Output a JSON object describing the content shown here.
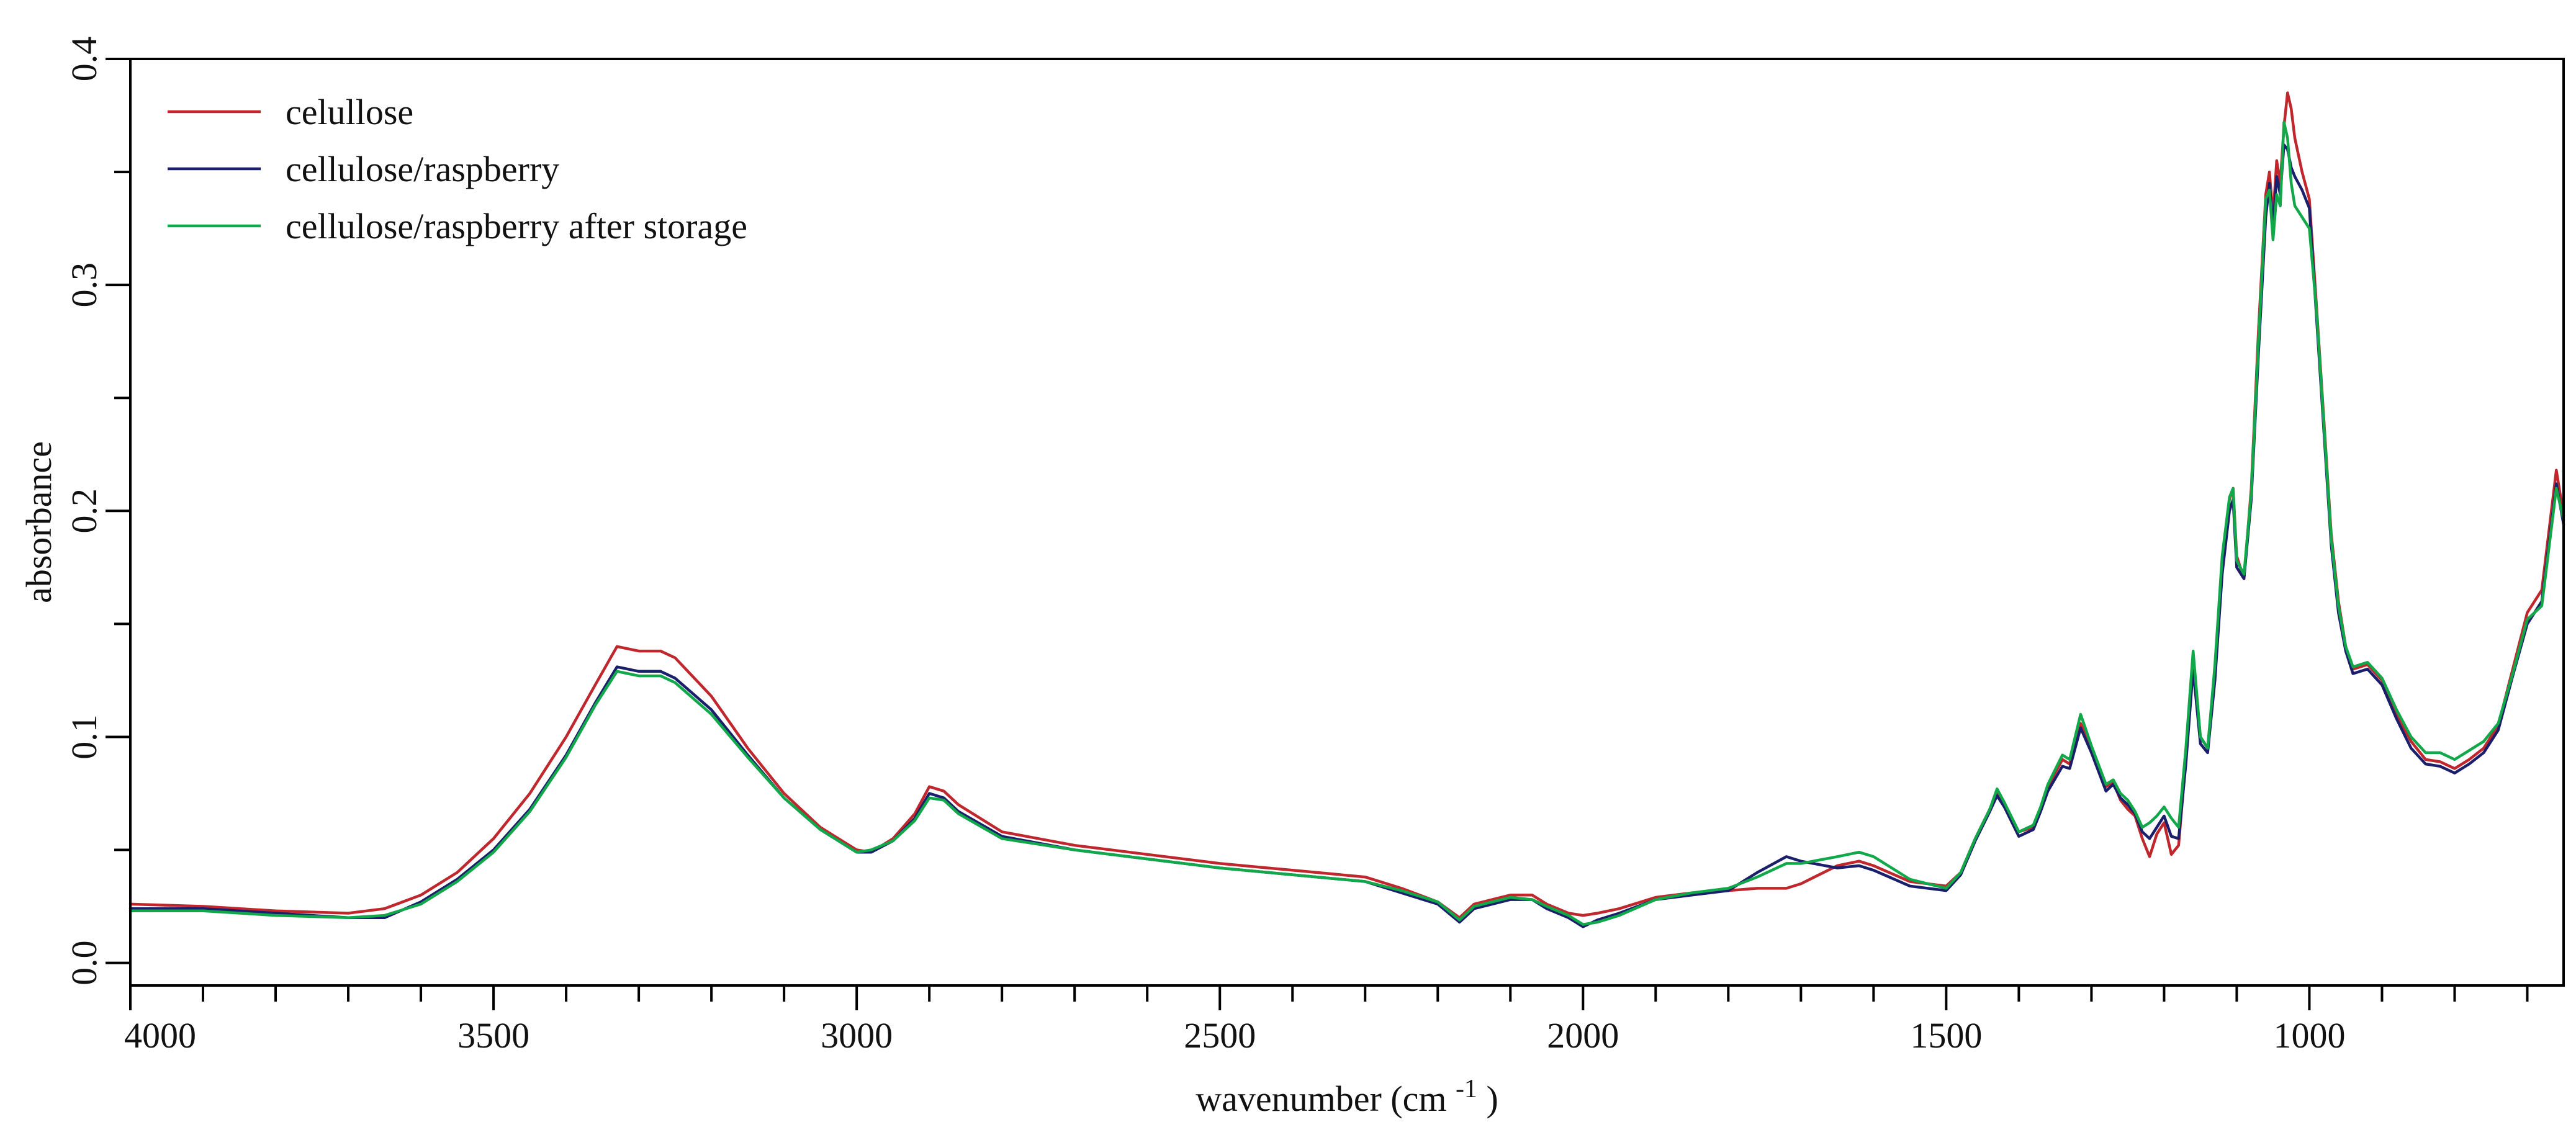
{
  "chart_data": {
    "type": "line",
    "title": "",
    "xlabel": "wavenumber (cm",
    "xlabel_superscript": "-1",
    "xlabel_close": ")",
    "ylabel": "absorbance",
    "xlim": [
      4000,
      650
    ],
    "ylim": [
      -0.01,
      0.4
    ],
    "grid": false,
    "legend_position": "top-left",
    "x_ticks": [
      {
        "value": 4000,
        "label": "4000"
      },
      {
        "value": 3500,
        "label": "3500"
      },
      {
        "value": 3000,
        "label": "3000"
      },
      {
        "value": 2500,
        "label": "2500"
      },
      {
        "value": 2000,
        "label": "2000"
      },
      {
        "value": 1500,
        "label": "1500"
      },
      {
        "value": 1000,
        "label": "1000"
      }
    ],
    "x_minor_step": 100,
    "y_ticks": [
      {
        "value": 0.0,
        "label": "0.0"
      },
      {
        "value": 0.1,
        "label": "0.1"
      },
      {
        "value": 0.2,
        "label": "0.2"
      },
      {
        "value": 0.3,
        "label": "0.3"
      },
      {
        "value": 0.4,
        "label": "0.4"
      }
    ],
    "y_minor_step": 0.05,
    "series": [
      {
        "name": "celullose",
        "color": "#c0272d",
        "x": [
          4000,
          3900,
          3800,
          3700,
          3650,
          3600,
          3550,
          3500,
          3450,
          3400,
          3360,
          3330,
          3300,
          3270,
          3250,
          3200,
          3150,
          3100,
          3050,
          3000,
          2980,
          2950,
          2920,
          2900,
          2880,
          2860,
          2800,
          2700,
          2600,
          2500,
          2400,
          2300,
          2250,
          2200,
          2170,
          2150,
          2100,
          2070,
          2050,
          2020,
          2000,
          1980,
          1950,
          1900,
          1850,
          1800,
          1760,
          1720,
          1700,
          1650,
          1620,
          1600,
          1550,
          1500,
          1480,
          1460,
          1440,
          1430,
          1420,
          1400,
          1380,
          1370,
          1360,
          1340,
          1330,
          1315,
          1300,
          1280,
          1270,
          1260,
          1250,
          1240,
          1230,
          1220,
          1210,
          1200,
          1190,
          1180,
          1170,
          1160,
          1150,
          1140,
          1130,
          1120,
          1110,
          1105,
          1100,
          1090,
          1080,
          1070,
          1060,
          1055,
          1050,
          1045,
          1040,
          1035,
          1030,
          1025,
          1020,
          1010,
          1000,
          990,
          980,
          970,
          960,
          950,
          940,
          920,
          900,
          880,
          860,
          840,
          820,
          800,
          780,
          760,
          740,
          720,
          700,
          680,
          660,
          650
        ],
        "y": [
          0.026,
          0.025,
          0.023,
          0.022,
          0.024,
          0.03,
          0.04,
          0.055,
          0.075,
          0.1,
          0.123,
          0.14,
          0.138,
          0.138,
          0.135,
          0.118,
          0.095,
          0.075,
          0.06,
          0.05,
          0.049,
          0.055,
          0.066,
          0.078,
          0.076,
          0.07,
          0.058,
          0.052,
          0.048,
          0.044,
          0.041,
          0.038,
          0.033,
          0.027,
          0.02,
          0.026,
          0.03,
          0.03,
          0.026,
          0.022,
          0.021,
          0.022,
          0.024,
          0.029,
          0.031,
          0.032,
          0.033,
          0.033,
          0.035,
          0.043,
          0.045,
          0.043,
          0.036,
          0.034,
          0.04,
          0.055,
          0.068,
          0.075,
          0.07,
          0.058,
          0.06,
          0.068,
          0.078,
          0.09,
          0.088,
          0.106,
          0.095,
          0.078,
          0.08,
          0.072,
          0.068,
          0.065,
          0.055,
          0.047,
          0.057,
          0.062,
          0.048,
          0.052,
          0.09,
          0.135,
          0.1,
          0.095,
          0.13,
          0.175,
          0.205,
          0.21,
          0.18,
          0.17,
          0.21,
          0.28,
          0.34,
          0.35,
          0.33,
          0.355,
          0.345,
          0.37,
          0.385,
          0.378,
          0.365,
          0.35,
          0.338,
          0.29,
          0.24,
          0.19,
          0.16,
          0.14,
          0.13,
          0.132,
          0.125,
          0.11,
          0.098,
          0.09,
          0.089,
          0.086,
          0.09,
          0.095,
          0.105,
          0.13,
          0.155,
          0.165,
          0.218,
          0.198
        ]
      },
      {
        "name": "cellulose/raspberry",
        "color": "#1b1f6b",
        "x": [
          4000,
          3900,
          3800,
          3700,
          3650,
          3600,
          3550,
          3500,
          3450,
          3400,
          3360,
          3330,
          3300,
          3270,
          3250,
          3200,
          3150,
          3100,
          3050,
          3000,
          2980,
          2950,
          2920,
          2900,
          2880,
          2860,
          2800,
          2700,
          2600,
          2500,
          2400,
          2300,
          2250,
          2200,
          2170,
          2150,
          2100,
          2070,
          2050,
          2020,
          2000,
          1980,
          1950,
          1900,
          1850,
          1800,
          1760,
          1720,
          1700,
          1650,
          1620,
          1600,
          1550,
          1500,
          1480,
          1460,
          1440,
          1430,
          1420,
          1400,
          1380,
          1370,
          1360,
          1340,
          1330,
          1315,
          1300,
          1280,
          1270,
          1260,
          1250,
          1240,
          1230,
          1220,
          1210,
          1200,
          1190,
          1180,
          1170,
          1160,
          1150,
          1140,
          1130,
          1120,
          1110,
          1105,
          1100,
          1090,
          1080,
          1070,
          1060,
          1055,
          1050,
          1045,
          1040,
          1035,
          1030,
          1025,
          1020,
          1010,
          1000,
          990,
          980,
          970,
          960,
          950,
          940,
          920,
          900,
          880,
          860,
          840,
          820,
          800,
          780,
          760,
          740,
          720,
          700,
          680,
          660,
          650
        ],
        "y": [
          0.024,
          0.024,
          0.022,
          0.02,
          0.02,
          0.027,
          0.037,
          0.05,
          0.068,
          0.092,
          0.115,
          0.131,
          0.129,
          0.129,
          0.126,
          0.112,
          0.092,
          0.073,
          0.059,
          0.049,
          0.049,
          0.054,
          0.064,
          0.075,
          0.073,
          0.067,
          0.056,
          0.05,
          0.046,
          0.042,
          0.039,
          0.036,
          0.031,
          0.026,
          0.018,
          0.024,
          0.028,
          0.028,
          0.024,
          0.02,
          0.016,
          0.019,
          0.022,
          0.028,
          0.03,
          0.032,
          0.04,
          0.047,
          0.045,
          0.042,
          0.043,
          0.041,
          0.034,
          0.032,
          0.039,
          0.054,
          0.067,
          0.074,
          0.069,
          0.056,
          0.059,
          0.067,
          0.076,
          0.087,
          0.086,
          0.104,
          0.093,
          0.076,
          0.079,
          0.073,
          0.07,
          0.066,
          0.058,
          0.055,
          0.06,
          0.065,
          0.056,
          0.055,
          0.088,
          0.13,
          0.097,
          0.093,
          0.125,
          0.172,
          0.2,
          0.205,
          0.175,
          0.17,
          0.205,
          0.27,
          0.33,
          0.345,
          0.325,
          0.348,
          0.34,
          0.362,
          0.36,
          0.352,
          0.348,
          0.342,
          0.334,
          0.285,
          0.235,
          0.185,
          0.155,
          0.138,
          0.128,
          0.13,
          0.123,
          0.108,
          0.095,
          0.088,
          0.087,
          0.084,
          0.088,
          0.093,
          0.103,
          0.127,
          0.15,
          0.16,
          0.212,
          0.194
        ]
      },
      {
        "name": "cellulose/raspberry after storage",
        "color": "#11a84a",
        "x": [
          4000,
          3900,
          3800,
          3700,
          3650,
          3600,
          3550,
          3500,
          3450,
          3400,
          3360,
          3330,
          3300,
          3270,
          3250,
          3200,
          3150,
          3100,
          3050,
          3000,
          2980,
          2950,
          2920,
          2900,
          2880,
          2860,
          2800,
          2700,
          2600,
          2500,
          2400,
          2300,
          2250,
          2200,
          2170,
          2150,
          2100,
          2070,
          2050,
          2020,
          2000,
          1980,
          1950,
          1900,
          1850,
          1800,
          1760,
          1720,
          1700,
          1650,
          1620,
          1600,
          1550,
          1500,
          1480,
          1460,
          1440,
          1430,
          1420,
          1400,
          1380,
          1370,
          1360,
          1340,
          1330,
          1315,
          1300,
          1280,
          1270,
          1260,
          1250,
          1240,
          1230,
          1220,
          1210,
          1200,
          1190,
          1180,
          1170,
          1160,
          1150,
          1140,
          1130,
          1120,
          1110,
          1105,
          1100,
          1090,
          1080,
          1070,
          1060,
          1055,
          1050,
          1045,
          1040,
          1035,
          1030,
          1025,
          1020,
          1010,
          1000,
          990,
          980,
          970,
          960,
          950,
          940,
          920,
          900,
          880,
          860,
          840,
          820,
          800,
          780,
          760,
          740,
          720,
          700,
          680,
          660,
          650
        ],
        "y": [
          0.023,
          0.023,
          0.021,
          0.02,
          0.021,
          0.026,
          0.036,
          0.049,
          0.067,
          0.091,
          0.114,
          0.129,
          0.127,
          0.127,
          0.124,
          0.11,
          0.091,
          0.073,
          0.059,
          0.049,
          0.05,
          0.054,
          0.063,
          0.073,
          0.072,
          0.066,
          0.055,
          0.05,
          0.046,
          0.042,
          0.039,
          0.036,
          0.032,
          0.027,
          0.019,
          0.025,
          0.029,
          0.028,
          0.025,
          0.021,
          0.017,
          0.018,
          0.021,
          0.028,
          0.031,
          0.033,
          0.038,
          0.044,
          0.044,
          0.047,
          0.049,
          0.047,
          0.037,
          0.033,
          0.04,
          0.055,
          0.068,
          0.077,
          0.071,
          0.058,
          0.061,
          0.069,
          0.079,
          0.092,
          0.09,
          0.11,
          0.096,
          0.079,
          0.081,
          0.075,
          0.072,
          0.067,
          0.06,
          0.062,
          0.065,
          0.069,
          0.064,
          0.06,
          0.095,
          0.138,
          0.1,
          0.095,
          0.132,
          0.18,
          0.206,
          0.21,
          0.178,
          0.172,
          0.208,
          0.275,
          0.338,
          0.342,
          0.32,
          0.34,
          0.335,
          0.372,
          0.365,
          0.345,
          0.335,
          0.33,
          0.325,
          0.288,
          0.238,
          0.188,
          0.158,
          0.14,
          0.131,
          0.133,
          0.126,
          0.112,
          0.1,
          0.093,
          0.093,
          0.09,
          0.094,
          0.098,
          0.106,
          0.128,
          0.152,
          0.158,
          0.21,
          0.196
        ]
      }
    ]
  }
}
